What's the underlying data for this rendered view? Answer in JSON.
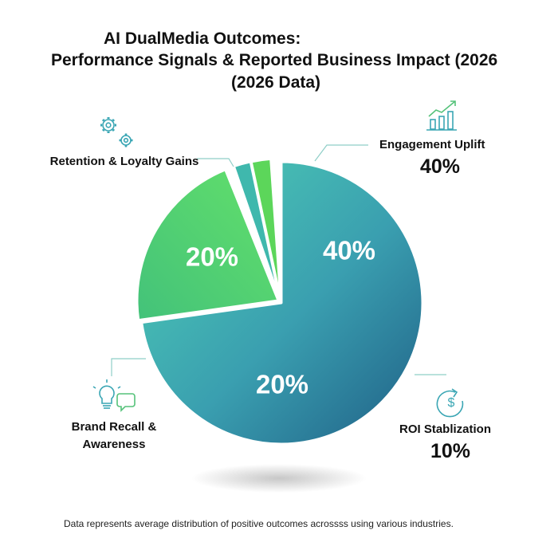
{
  "title_line1": "AI DualMedia Outcomes:",
  "title_line2": "Performance Signals & Reported Business Impact (2026",
  "title_line3": "(2026 Data)",
  "footer": "Data represents average distribution of positive outcomes acrossss using various industries.",
  "colors": {
    "teal": "#3fb8ad",
    "blue": "#2e6f96",
    "green": "#5cd65a",
    "stroke": "#8fcfc8"
  },
  "chart_data": {
    "type": "pie",
    "slices": [
      {
        "label": "Engagement Uplift",
        "value": 40,
        "value_text": "40%",
        "inner_label": "40%",
        "icon": "growth-chart-icon",
        "color": "#3fb8ad"
      },
      {
        "label": "ROI Stablization",
        "value": 10,
        "value_text": "10%",
        "inner_label": "",
        "icon": "dollar-refresh-icon",
        "color": "#2e8aa0"
      },
      {
        "label": "Brand Recall & Awareness",
        "value": 20,
        "value_text": "",
        "inner_label": "20%",
        "icon": "lightbulb-chat-icon",
        "color": "#3ca99a"
      },
      {
        "label": "Retention & Loyalty Gains",
        "value": 20,
        "value_text": "",
        "inner_label": "20%",
        "icon": "gears-icon",
        "color": "#5cd65a"
      }
    ],
    "inner_labels": [
      "40%",
      "20%",
      "20%"
    ]
  }
}
